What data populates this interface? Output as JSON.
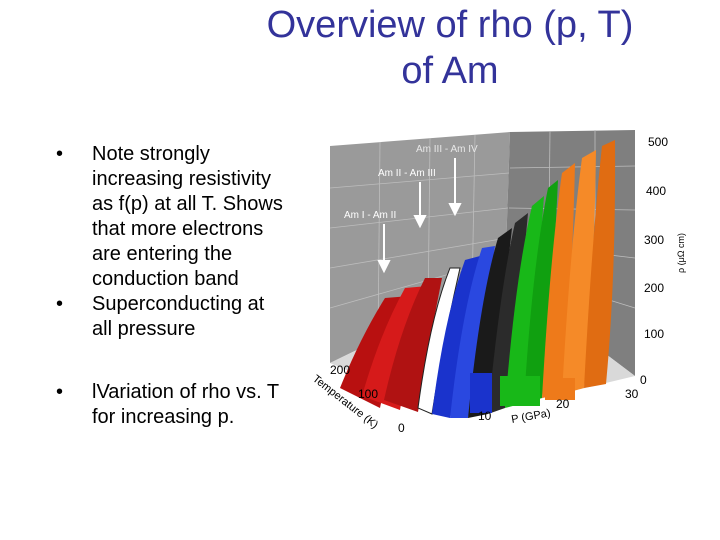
{
  "slide": {
    "title_line1": "Overview of rho (p, T)",
    "title_line2": "of Am",
    "bullet_symbol": "•",
    "bullets": [
      "Note strongly increasing resistivity as f(p) at all T. Shows that more electrons are entering the conduction band",
      "Superconducting at all pressure",
      "lVariation of rho vs. T for increasing p."
    ]
  },
  "figure": {
    "phase_labels": [
      "Am III - Am IV",
      "Am II - Am III",
      "Am I - Am II"
    ],
    "rho_axis": {
      "label": "ρ (μΩ cm)",
      "ticks": [
        "500",
        "400",
        "300",
        "200",
        "100",
        "0"
      ]
    },
    "p_axis": {
      "label": "P (GPa)",
      "ticks": [
        "10",
        "20",
        "30"
      ]
    },
    "t_axis": {
      "label": "Temperature (K)",
      "ticks": [
        "200",
        "100",
        "0"
      ]
    },
    "colors": {
      "grid_wall": "#8c8c8c",
      "red": "#cc1010",
      "blue": "#1a33cc",
      "green": "#18b818",
      "orange": "#ee7a1a",
      "title": "#33339a"
    }
  }
}
